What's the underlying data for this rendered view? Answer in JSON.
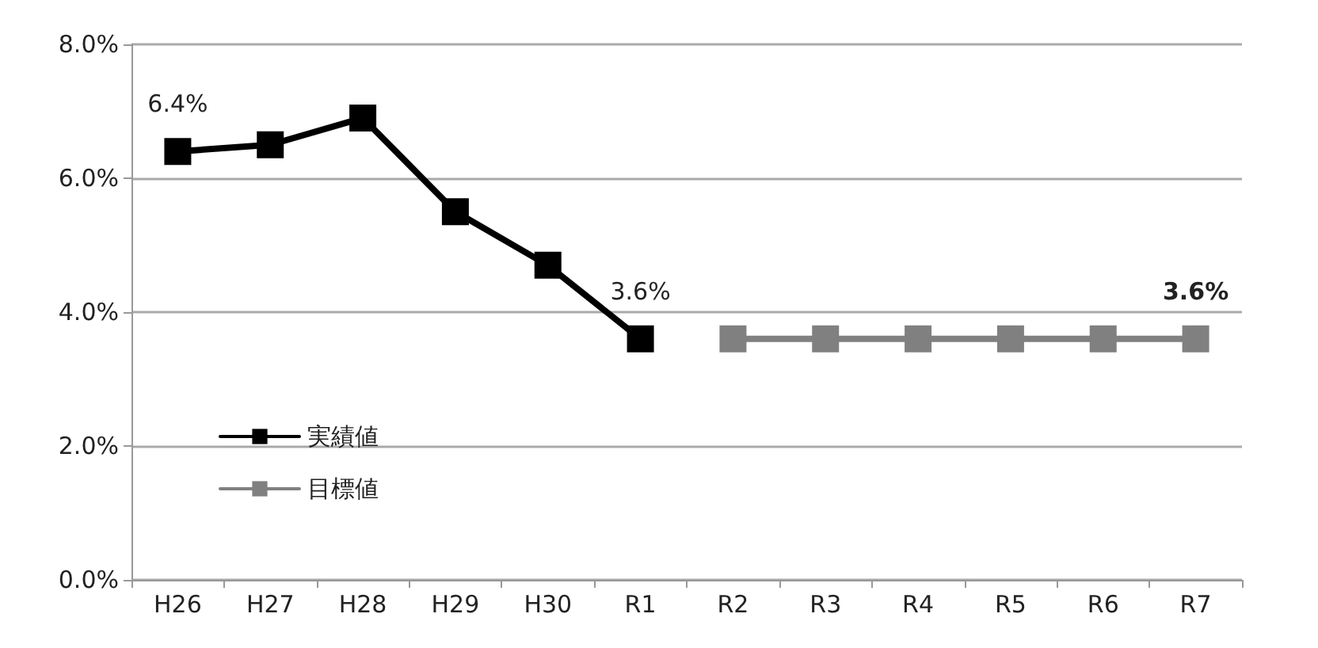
{
  "chart_data": {
    "type": "line",
    "categories": [
      "H26",
      "H27",
      "H28",
      "H29",
      "H30",
      "R1",
      "R2",
      "R3",
      "R4",
      "R5",
      "R6",
      "R7"
    ],
    "series": [
      {
        "name": "実績値",
        "color": "#000000",
        "values": [
          6.4,
          6.5,
          6.9,
          5.5,
          4.7,
          3.6,
          null,
          null,
          null,
          null,
          null,
          null
        ],
        "value_labels": [
          "6.4%",
          null,
          null,
          null,
          null,
          "3.6%",
          null,
          null,
          null,
          null,
          null,
          null
        ]
      },
      {
        "name": "目標値",
        "color": "#808080",
        "values": [
          null,
          null,
          null,
          null,
          null,
          null,
          3.6,
          3.6,
          3.6,
          3.6,
          3.6,
          3.6
        ],
        "value_labels": [
          null,
          null,
          null,
          null,
          null,
          null,
          null,
          null,
          null,
          null,
          null,
          "3.6%"
        ]
      }
    ],
    "ylim": [
      0,
      8
    ],
    "yticks": [
      {
        "value": 0,
        "label": "0.0%"
      },
      {
        "value": 2,
        "label": "2.0%"
      },
      {
        "value": 4,
        "label": "4.0%"
      },
      {
        "value": 6,
        "label": "6.0%"
      },
      {
        "value": 8,
        "label": "8.0%"
      }
    ],
    "grid": "y",
    "legend": "bottom left",
    "marker": "square",
    "line_style": "solid"
  }
}
